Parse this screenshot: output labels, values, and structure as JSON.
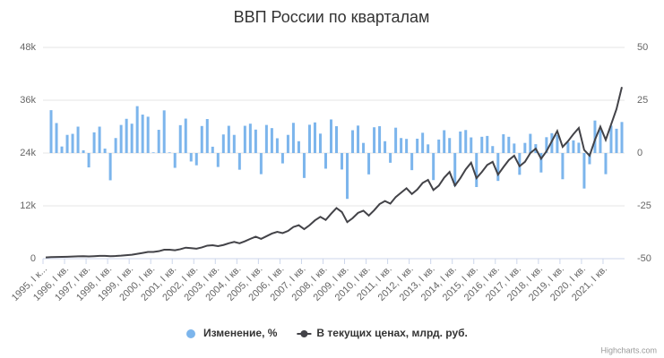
{
  "chart_data": {
    "type": "bar_line",
    "title": "ВВП России по кварталам",
    "categories": [
      "1995, I к...",
      null,
      null,
      null,
      "1996, I кв.",
      null,
      null,
      null,
      "1997, I кв.",
      null,
      null,
      null,
      "1998, I кв.",
      null,
      null,
      null,
      "1999, I кв.",
      null,
      null,
      null,
      "2000, I кв.",
      null,
      null,
      null,
      "2001, I кв.",
      null,
      null,
      null,
      "2002, I кв.",
      null,
      null,
      null,
      "2003, I кв.",
      null,
      null,
      null,
      "2004, I кв.",
      null,
      null,
      null,
      "2005, I кв.",
      null,
      null,
      null,
      "2006, I кв.",
      null,
      null,
      null,
      "2007, I кв.",
      null,
      null,
      null,
      "2008, I кв.",
      null,
      null,
      null,
      "2009, I кв.",
      null,
      null,
      null,
      "2010, I кв.",
      null,
      null,
      null,
      "2011, I кв.",
      null,
      null,
      null,
      "2012, I кв.",
      null,
      null,
      null,
      "2013, I кв.",
      null,
      null,
      null,
      "2014, I кв.",
      null,
      null,
      null,
      "2015, I кв.",
      null,
      null,
      null,
      "2016, I кв.",
      null,
      null,
      null,
      "2017, I кв.",
      null,
      null,
      null,
      "2018, I кв.",
      null,
      null,
      null,
      "2019, I кв.",
      null,
      null,
      null,
      "2020, I кв.",
      null,
      null,
      null,
      "2021, I кв.",
      null,
      null,
      null
    ],
    "series": [
      {
        "name": "Изменение, %",
        "color": "#7cb5ec",
        "axis": "y2",
        "kind": "bar",
        "values": [
          null,
          20.3,
          14.2,
          3.1,
          8.6,
          9.1,
          12.5,
          1.3,
          -6.8,
          9.8,
          12.5,
          2.1,
          -12.9,
          7.1,
          13.3,
          16.2,
          13.9,
          22.2,
          18.2,
          17.2,
          0.3,
          11.0,
          20.2,
          0.3,
          -7.0,
          13.2,
          16.3,
          -4.0,
          -5.8,
          12.8,
          16.1,
          3.0,
          -6.6,
          8.8,
          12.9,
          8.6,
          -7.9,
          12.9,
          13.9,
          11.1,
          -10.0,
          13.3,
          11.8,
          7.0,
          -4.9,
          8.6,
          14.3,
          5.6,
          -11.8,
          13.4,
          14.5,
          9.2,
          -7.4,
          15.9,
          12.7,
          -7.8,
          -21.7,
          10.8,
          13.0,
          4.8,
          -10.1,
          12.2,
          12.7,
          5.6,
          -4.6,
          12.0,
          7.1,
          6.7,
          -8.1,
          6.8,
          9.6,
          4.1,
          -12.8,
          6.4,
          10.8,
          7.1,
          -15.7,
          10.2,
          10.9,
          7.4,
          -16.1,
          7.7,
          8.1,
          3.3,
          -13.2,
          8.9,
          7.7,
          4.5,
          -10.3,
          4.8,
          9.1,
          4.2,
          -9.2,
          7.5,
          9.4,
          8.6,
          -12.4,
          5.1,
          6.0,
          4.9,
          -16.8,
          -5.3,
          15.4,
          11.1,
          -10.0,
          13.0,
          11.5,
          14.7
        ]
      },
      {
        "name": "В текущих ценах, млрд. руб.",
        "color": "#434348",
        "axis": "y",
        "kind": "line",
        "values": [
          286,
          344,
          393,
          405,
          440,
          480,
          540,
          547,
          510,
          560,
          630,
          643,
          560,
          600,
          680,
          790,
          900,
          1100,
          1300,
          1523,
          1528,
          1696,
          2038,
          2044,
          1900,
          2150,
          2500,
          2400,
          2260,
          2550,
          2960,
          3050,
          2850,
          3100,
          3500,
          3800,
          3500,
          3950,
          4500,
          5000,
          4500,
          5100,
          5700,
          6100,
          5800,
          6300,
          7200,
          7600,
          6700,
          7600,
          8700,
          9500,
          8800,
          10200,
          11500,
          10600,
          8300,
          9200,
          10400,
          10900,
          9800,
          11000,
          12400,
          13100,
          12500,
          14000,
          15000,
          16000,
          14700,
          15700,
          17200,
          17900,
          15600,
          16600,
          18400,
          19700,
          16600,
          18300,
          20300,
          21800,
          18300,
          19700,
          21300,
          22000,
          19100,
          20800,
          22400,
          23400,
          21000,
          22000,
          24000,
          25000,
          22700,
          24400,
          26700,
          29000,
          25400,
          26700,
          28300,
          29700,
          24700,
          23400,
          27000,
          30000,
          27000,
          30500,
          34000,
          39000
        ]
      }
    ],
    "ylim": [
      0,
      48000
    ],
    "yticks": [
      0,
      {
        "value": 12000,
        "label": "12k"
      },
      {
        "value": 24000,
        "label": "24k"
      },
      {
        "value": 36000,
        "label": "36k"
      },
      {
        "value": 48000,
        "label": "48k"
      }
    ],
    "y2lim": [
      -50,
      50
    ],
    "y2ticks": [
      -50,
      -25,
      0,
      25,
      50
    ],
    "grid": true,
    "legend": "bottom",
    "credits": "Highcharts.com"
  }
}
